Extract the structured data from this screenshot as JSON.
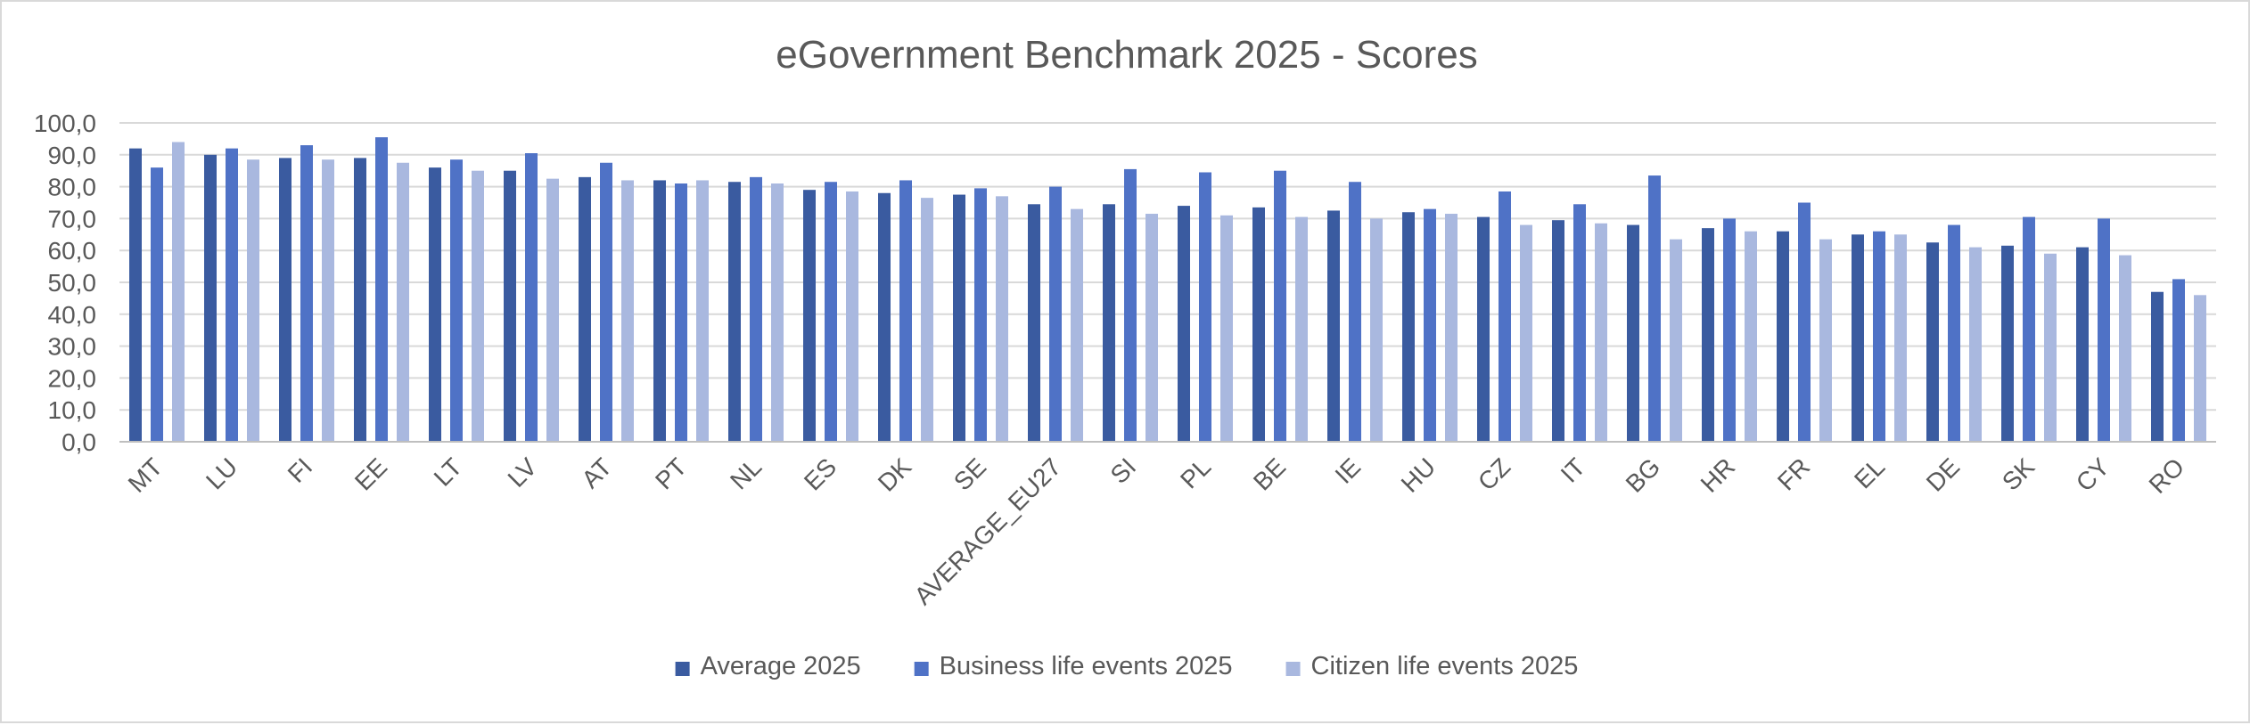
{
  "chart_data": {
    "type": "bar",
    "title": "eGovernment  Benchmark 2025 - Scores",
    "xlabel": "",
    "ylabel": "",
    "ylim": [
      0,
      100
    ],
    "y_ticks": [
      "0,0",
      "10,0",
      "20,0",
      "30,0",
      "40,0",
      "50,0",
      "60,0",
      "70,0",
      "80,0",
      "90,0",
      "100,0"
    ],
    "y_tick_values": [
      0,
      10,
      20,
      30,
      40,
      50,
      60,
      70,
      80,
      90,
      100
    ],
    "grid": true,
    "legend_position": "bottom",
    "categories": [
      "MT",
      "LU",
      "FI",
      "EE",
      "LT",
      "LV",
      "AT",
      "PT",
      "NL",
      "ES",
      "DK",
      "SE",
      "AVERAGE_EU27",
      "SI",
      "PL",
      "BE",
      "IE",
      "HU",
      "CZ",
      "IT",
      "BG",
      "HR",
      "FR",
      "EL",
      "DE",
      "SK",
      "CY",
      "RO"
    ],
    "series": [
      {
        "name": "Average 2025",
        "color": "#3a5ba0",
        "values": [
          92,
          90,
          89,
          89,
          86,
          85,
          83,
          82,
          81.5,
          79,
          78,
          77.5,
          74.5,
          74.5,
          74,
          73.5,
          72.5,
          72,
          70.5,
          69.5,
          68,
          67,
          66,
          65,
          62.5,
          61.5,
          61,
          47
        ]
      },
      {
        "name": "Business life events 2025",
        "color": "#4f72c6",
        "values": [
          86,
          92,
          93,
          95.5,
          88.5,
          90.5,
          87.5,
          81,
          83,
          81.5,
          82,
          79.5,
          80,
          85.5,
          84.5,
          85,
          81.5,
          73,
          78.5,
          74.5,
          83.5,
          70,
          75,
          66,
          68,
          70.5,
          70,
          51
        ]
      },
      {
        "name": "Citizen life events 2025",
        "color": "#a9b8df",
        "values": [
          94,
          88.5,
          88.5,
          87.5,
          85,
          82.5,
          82,
          82,
          81,
          78.5,
          76.5,
          77,
          73,
          71.5,
          71,
          70.5,
          70,
          71.5,
          68,
          68.5,
          63.5,
          66,
          63.5,
          65,
          61,
          59,
          58.5,
          46
        ]
      }
    ]
  }
}
